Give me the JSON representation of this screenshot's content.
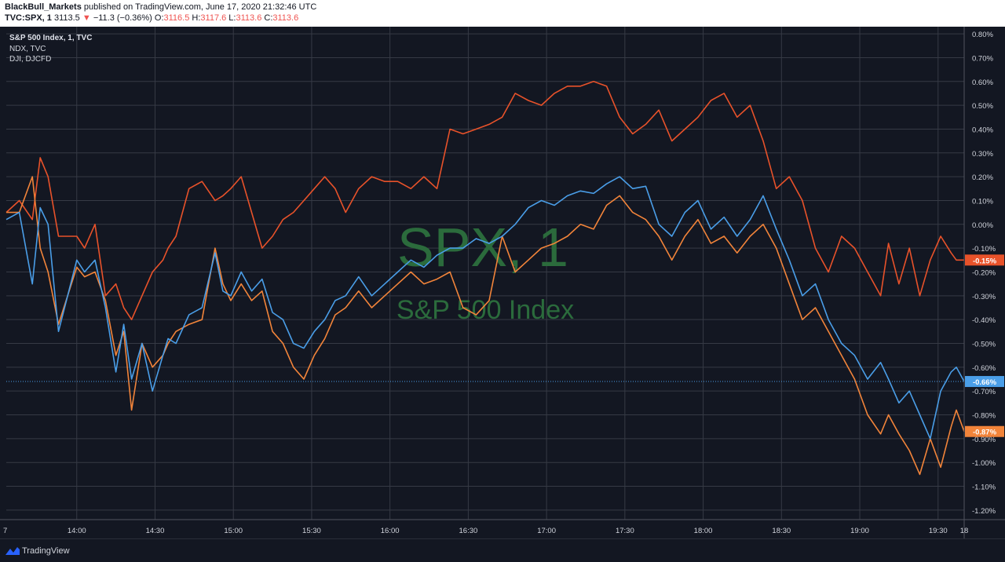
{
  "header": {
    "author": "BlackBull_Markets",
    "published_text": "published on TradingView.com, June 17, 2020 21:32:46 UTC",
    "symbol": "TVC:SPX, 1",
    "last": "3113.5",
    "change_arrow": "▼",
    "change": "−11.3 (−0.36%)",
    "o_label": "O:",
    "o_value": "3116.5",
    "h_label": "H:",
    "h_value": "3117.6",
    "l_label": "L:",
    "l_value": "3113.6",
    "c_label": "C:",
    "c_value": "3113.6"
  },
  "legend": {
    "main": "S&P 500 Index, 1, TVC",
    "second": "NDX, TVC",
    "third": "DJI, DJCFD"
  },
  "watermark": {
    "symbol": "SPX, 1",
    "name": "S&P 500 Index"
  },
  "footer": {
    "brand": "TradingView"
  },
  "colors": {
    "background": "#131722",
    "grid": "#363a45",
    "axis_text": "#d1d4dc",
    "watermark": "#2b6b3c",
    "spx": "#4a9ee8",
    "ndx": "#f2843a",
    "dji": "#e8522a"
  },
  "chart_data": {
    "type": "line",
    "title": "",
    "xlabel": "",
    "ylabel": "",
    "x_ticks": [
      "7",
      "14:00",
      "14:30",
      "15:00",
      "15:30",
      "16:00",
      "16:30",
      "17:00",
      "17:30",
      "18:00",
      "18:30",
      "19:00",
      "19:30",
      "18"
    ],
    "y_ticks": [
      "0.80%",
      "0.70%",
      "0.60%",
      "0.50%",
      "0.40%",
      "0.30%",
      "0.20%",
      "0.10%",
      "0.00%",
      "-0.10%",
      "-0.20%",
      "-0.30%",
      "-0.40%",
      "-0.50%",
      "-0.60%",
      "-0.70%",
      "-0.80%",
      "-0.90%",
      "-1.00%",
      "-1.10%",
      "-1.20%"
    ],
    "ylim": [
      -1.24,
      0.83
    ],
    "x_unit": "minutes from 13:30",
    "xlim": [
      0,
      367
    ],
    "grid": true,
    "series": [
      {
        "name": "S&P 500 Index, 1, TVC",
        "color": "#4a9ee8",
        "last_label": "-0.66%",
        "x": [
          0,
          5,
          10,
          13,
          16,
          20,
          27,
          30,
          34,
          38,
          42,
          45,
          48,
          52,
          56,
          60,
          62,
          65,
          70,
          75,
          80,
          83,
          86,
          90,
          94,
          98,
          102,
          106,
          110,
          114,
          118,
          122,
          126,
          130,
          135,
          140,
          145,
          150,
          155,
          160,
          165,
          170,
          175,
          180,
          185,
          190,
          195,
          200,
          205,
          210,
          215,
          220,
          225,
          230,
          235,
          240,
          245,
          250,
          255,
          260,
          265,
          270,
          275,
          280,
          285,
          290,
          295,
          300,
          305,
          310,
          315,
          320,
          325,
          330,
          335,
          338,
          342,
          346,
          350,
          354,
          358,
          362,
          364,
          367
        ],
        "y": [
          0.02,
          0.05,
          -0.25,
          0.07,
          0.0,
          -0.45,
          -0.15,
          -0.2,
          -0.15,
          -0.35,
          -0.62,
          -0.42,
          -0.65,
          -0.5,
          -0.7,
          -0.55,
          -0.48,
          -0.5,
          -0.38,
          -0.35,
          -0.12,
          -0.28,
          -0.3,
          -0.2,
          -0.28,
          -0.23,
          -0.37,
          -0.4,
          -0.5,
          -0.52,
          -0.45,
          -0.4,
          -0.32,
          -0.3,
          -0.22,
          -0.3,
          -0.25,
          -0.2,
          -0.15,
          -0.18,
          -0.13,
          -0.1,
          -0.1,
          -0.06,
          -0.08,
          -0.05,
          0.0,
          0.07,
          0.1,
          0.08,
          0.12,
          0.14,
          0.13,
          0.17,
          0.2,
          0.15,
          0.16,
          0.0,
          -0.05,
          0.05,
          0.1,
          -0.02,
          0.03,
          -0.05,
          0.02,
          0.12,
          -0.02,
          -0.15,
          -0.3,
          -0.25,
          -0.4,
          -0.5,
          -0.55,
          -0.65,
          -0.58,
          -0.65,
          -0.75,
          -0.7,
          -0.8,
          -0.9,
          -0.7,
          -0.62,
          -0.6,
          -0.66
        ]
      },
      {
        "name": "NDX, TVC",
        "color": "#f2843a",
        "last_label": "-0.87%",
        "x": [
          0,
          5,
          10,
          13,
          16,
          20,
          27,
          30,
          34,
          38,
          42,
          45,
          48,
          52,
          56,
          60,
          62,
          65,
          70,
          75,
          80,
          83,
          86,
          90,
          94,
          98,
          102,
          106,
          110,
          114,
          118,
          122,
          126,
          130,
          135,
          140,
          145,
          150,
          155,
          160,
          165,
          170,
          175,
          180,
          185,
          190,
          195,
          200,
          205,
          210,
          215,
          220,
          225,
          230,
          235,
          240,
          245,
          250,
          255,
          260,
          265,
          270,
          275,
          280,
          285,
          290,
          295,
          300,
          305,
          310,
          315,
          320,
          325,
          330,
          335,
          338,
          342,
          346,
          350,
          354,
          358,
          362,
          364,
          367
        ],
        "y": [
          0.05,
          0.05,
          0.2,
          -0.1,
          -0.2,
          -0.42,
          -0.18,
          -0.22,
          -0.2,
          -0.32,
          -0.55,
          -0.45,
          -0.78,
          -0.5,
          -0.6,
          -0.55,
          -0.5,
          -0.45,
          -0.42,
          -0.4,
          -0.1,
          -0.25,
          -0.32,
          -0.25,
          -0.32,
          -0.28,
          -0.45,
          -0.5,
          -0.6,
          -0.65,
          -0.55,
          -0.48,
          -0.38,
          -0.35,
          -0.28,
          -0.35,
          -0.3,
          -0.25,
          -0.2,
          -0.25,
          -0.23,
          -0.2,
          -0.35,
          -0.38,
          -0.32,
          -0.05,
          -0.2,
          -0.15,
          -0.1,
          -0.08,
          -0.05,
          0.0,
          -0.02,
          0.08,
          0.12,
          0.05,
          0.02,
          -0.05,
          -0.15,
          -0.05,
          0.02,
          -0.08,
          -0.05,
          -0.12,
          -0.05,
          0.0,
          -0.1,
          -0.25,
          -0.4,
          -0.35,
          -0.45,
          -0.55,
          -0.65,
          -0.8,
          -0.88,
          -0.8,
          -0.88,
          -0.95,
          -1.05,
          -0.9,
          -1.02,
          -0.85,
          -0.78,
          -0.87
        ]
      },
      {
        "name": "DJI, DJCFD",
        "color": "#e8522a",
        "last_label": "-0.15%",
        "x": [
          0,
          5,
          10,
          13,
          16,
          20,
          27,
          30,
          34,
          38,
          42,
          45,
          48,
          52,
          56,
          60,
          62,
          65,
          70,
          75,
          80,
          83,
          86,
          90,
          94,
          98,
          102,
          106,
          110,
          114,
          118,
          122,
          126,
          130,
          135,
          140,
          145,
          150,
          155,
          160,
          165,
          170,
          175,
          180,
          185,
          190,
          195,
          200,
          205,
          210,
          215,
          220,
          225,
          230,
          235,
          240,
          245,
          250,
          255,
          260,
          265,
          270,
          275,
          280,
          285,
          290,
          295,
          300,
          305,
          310,
          315,
          320,
          325,
          330,
          335,
          338,
          342,
          346,
          350,
          354,
          358,
          362,
          364,
          367
        ],
        "y": [
          0.05,
          0.1,
          0.02,
          0.28,
          0.2,
          -0.05,
          -0.05,
          -0.1,
          0.0,
          -0.3,
          -0.25,
          -0.35,
          -0.4,
          -0.3,
          -0.2,
          -0.15,
          -0.1,
          -0.05,
          0.15,
          0.18,
          0.1,
          0.12,
          0.15,
          0.2,
          0.05,
          -0.1,
          -0.05,
          0.02,
          0.05,
          0.1,
          0.15,
          0.2,
          0.15,
          0.05,
          0.15,
          0.2,
          0.18,
          0.18,
          0.15,
          0.2,
          0.15,
          0.4,
          0.38,
          0.4,
          0.42,
          0.45,
          0.55,
          0.52,
          0.5,
          0.55,
          0.58,
          0.58,
          0.6,
          0.58,
          0.45,
          0.38,
          0.42,
          0.48,
          0.35,
          0.4,
          0.45,
          0.52,
          0.55,
          0.45,
          0.5,
          0.35,
          0.15,
          0.2,
          0.1,
          -0.1,
          -0.2,
          -0.05,
          -0.1,
          -0.2,
          -0.3,
          -0.08,
          -0.25,
          -0.1,
          -0.3,
          -0.15,
          -0.05,
          -0.12,
          -0.15,
          -0.15
        ]
      }
    ]
  }
}
